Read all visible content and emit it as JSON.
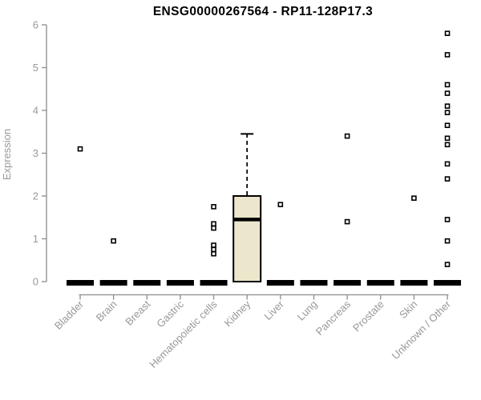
{
  "title": "ENSG00000267564 - RP11-128P17.3",
  "chart_data": {
    "type": "boxplot",
    "title": "ENSG00000267564 - RP11-128P17.3",
    "ylabel": "Expression",
    "xlabel": "",
    "ylim": [
      0,
      6
    ],
    "yticks": [
      0,
      1,
      2,
      3,
      4,
      5,
      6
    ],
    "grid": false,
    "legend": "none",
    "colors": {
      "box_fill": "#ECE7CC",
      "box_border": "#000000",
      "median": "#000000",
      "outlier_stroke": "#000000",
      "outlier_fill": "#ffffff",
      "axis": "#8C8C8C",
      "tick_text": "#989898",
      "title_text": "#000000"
    },
    "categories": [
      "Bladder",
      "Brain",
      "Breast",
      "Gastric",
      "Hematopoietic cells",
      "Kidney",
      "Liver",
      "Lung",
      "Pancreas",
      "Prostate",
      "Skin",
      "Unknown / Other"
    ],
    "series": [
      {
        "category": "Bladder",
        "q1": 0,
        "median": 0,
        "q3": 0,
        "whisker_low": 0,
        "whisker_high": 0,
        "outliers": [
          3.1
        ]
      },
      {
        "category": "Brain",
        "q1": 0,
        "median": 0,
        "q3": 0,
        "whisker_low": 0,
        "whisker_high": 0,
        "outliers": [
          0.95
        ]
      },
      {
        "category": "Breast",
        "q1": 0,
        "median": 0,
        "q3": 0,
        "whisker_low": 0,
        "whisker_high": 0,
        "outliers": []
      },
      {
        "category": "Gastric",
        "q1": 0,
        "median": 0,
        "q3": 0,
        "whisker_low": 0,
        "whisker_high": 0,
        "outliers": []
      },
      {
        "category": "Hematopoietic cells",
        "q1": 0,
        "median": 0,
        "q3": 0,
        "whisker_low": 0,
        "whisker_high": 0,
        "outliers": [
          1.75,
          1.35,
          1.25,
          0.85,
          0.75,
          0.65
        ]
      },
      {
        "category": "Kidney",
        "q1": 0,
        "median": 1.45,
        "q3": 2.0,
        "whisker_low": 0,
        "whisker_high": 3.45,
        "outliers": []
      },
      {
        "category": "Liver",
        "q1": 0,
        "median": 0,
        "q3": 0,
        "whisker_low": 0,
        "whisker_high": 0,
        "outliers": [
          1.8
        ]
      },
      {
        "category": "Lung",
        "q1": 0,
        "median": 0,
        "q3": 0,
        "whisker_low": 0,
        "whisker_high": 0,
        "outliers": []
      },
      {
        "category": "Pancreas",
        "q1": 0,
        "median": 0,
        "q3": 0,
        "whisker_low": 0,
        "whisker_high": 0,
        "outliers": [
          3.4,
          1.4
        ]
      },
      {
        "category": "Prostate",
        "q1": 0,
        "median": 0,
        "q3": 0,
        "whisker_low": 0,
        "whisker_high": 0,
        "outliers": []
      },
      {
        "category": "Skin",
        "q1": 0,
        "median": 0,
        "q3": 0,
        "whisker_low": 0,
        "whisker_high": 0,
        "outliers": [
          1.95
        ]
      },
      {
        "category": "Unknown / Other",
        "q1": 0,
        "median": 0,
        "q3": 0,
        "whisker_low": 0,
        "whisker_high": 0,
        "outliers": [
          5.8,
          5.3,
          4.6,
          4.4,
          4.1,
          3.95,
          3.65,
          3.35,
          3.2,
          2.75,
          2.4,
          1.45,
          0.95,
          0.4
        ]
      }
    ]
  }
}
